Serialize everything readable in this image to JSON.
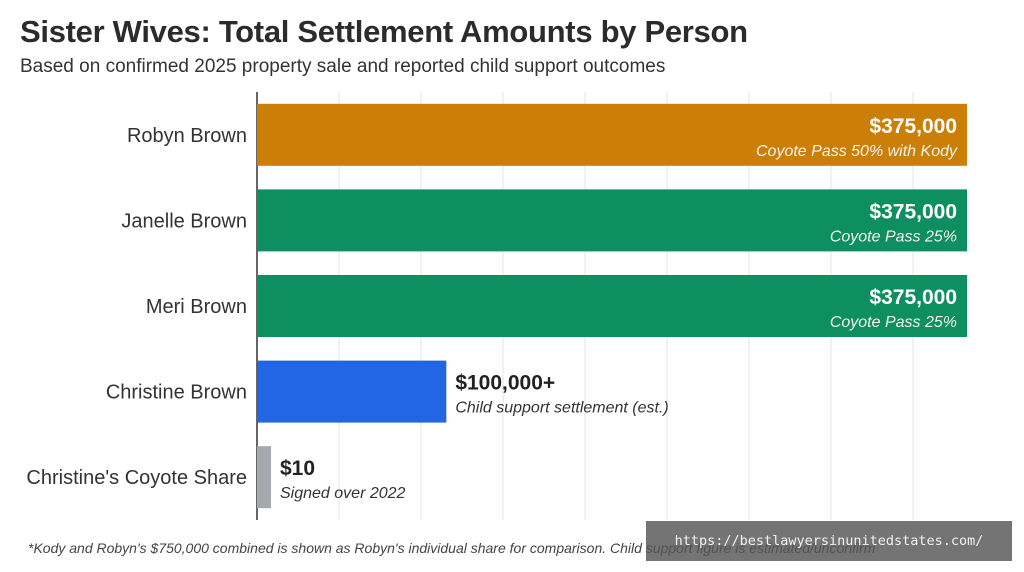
{
  "chart_data": {
    "type": "bar",
    "orientation": "horizontal",
    "title": "Sister Wives: Total Settlement Amounts by Person",
    "subtitle": "Based on confirmed 2025 property sale and reported child support outcomes",
    "xlabel": "",
    "ylabel": "",
    "xlim": [
      0,
      375000
    ],
    "grid": true,
    "legend": "none",
    "categories": [
      "Robyn Brown",
      "Janelle Brown",
      "Meri Brown",
      "Christine Brown",
      "Christine's Coyote Share"
    ],
    "values": [
      375000,
      375000,
      375000,
      100000,
      10
    ],
    "value_labels": [
      "$375,000",
      "$375,000",
      "$375,000",
      "$100,000+",
      "$10"
    ],
    "annotations": [
      "Coyote Pass 50% with Kody",
      "Coyote Pass 25%",
      "Coyote Pass 25%",
      "Child support settlement (est.)",
      "Signed over 2022"
    ],
    "colors": [
      "#cc7f06",
      "#0e8f61",
      "#0e8f61",
      "#2266e3",
      "#a6a8ad"
    ]
  },
  "footnote": "*Kody and Robyn's $750,000 combined is shown as Robyn's individual share for comparison. Child support figure is estimated/unconfirm",
  "watermark": "https://bestlawyersinunitedstates.com/"
}
